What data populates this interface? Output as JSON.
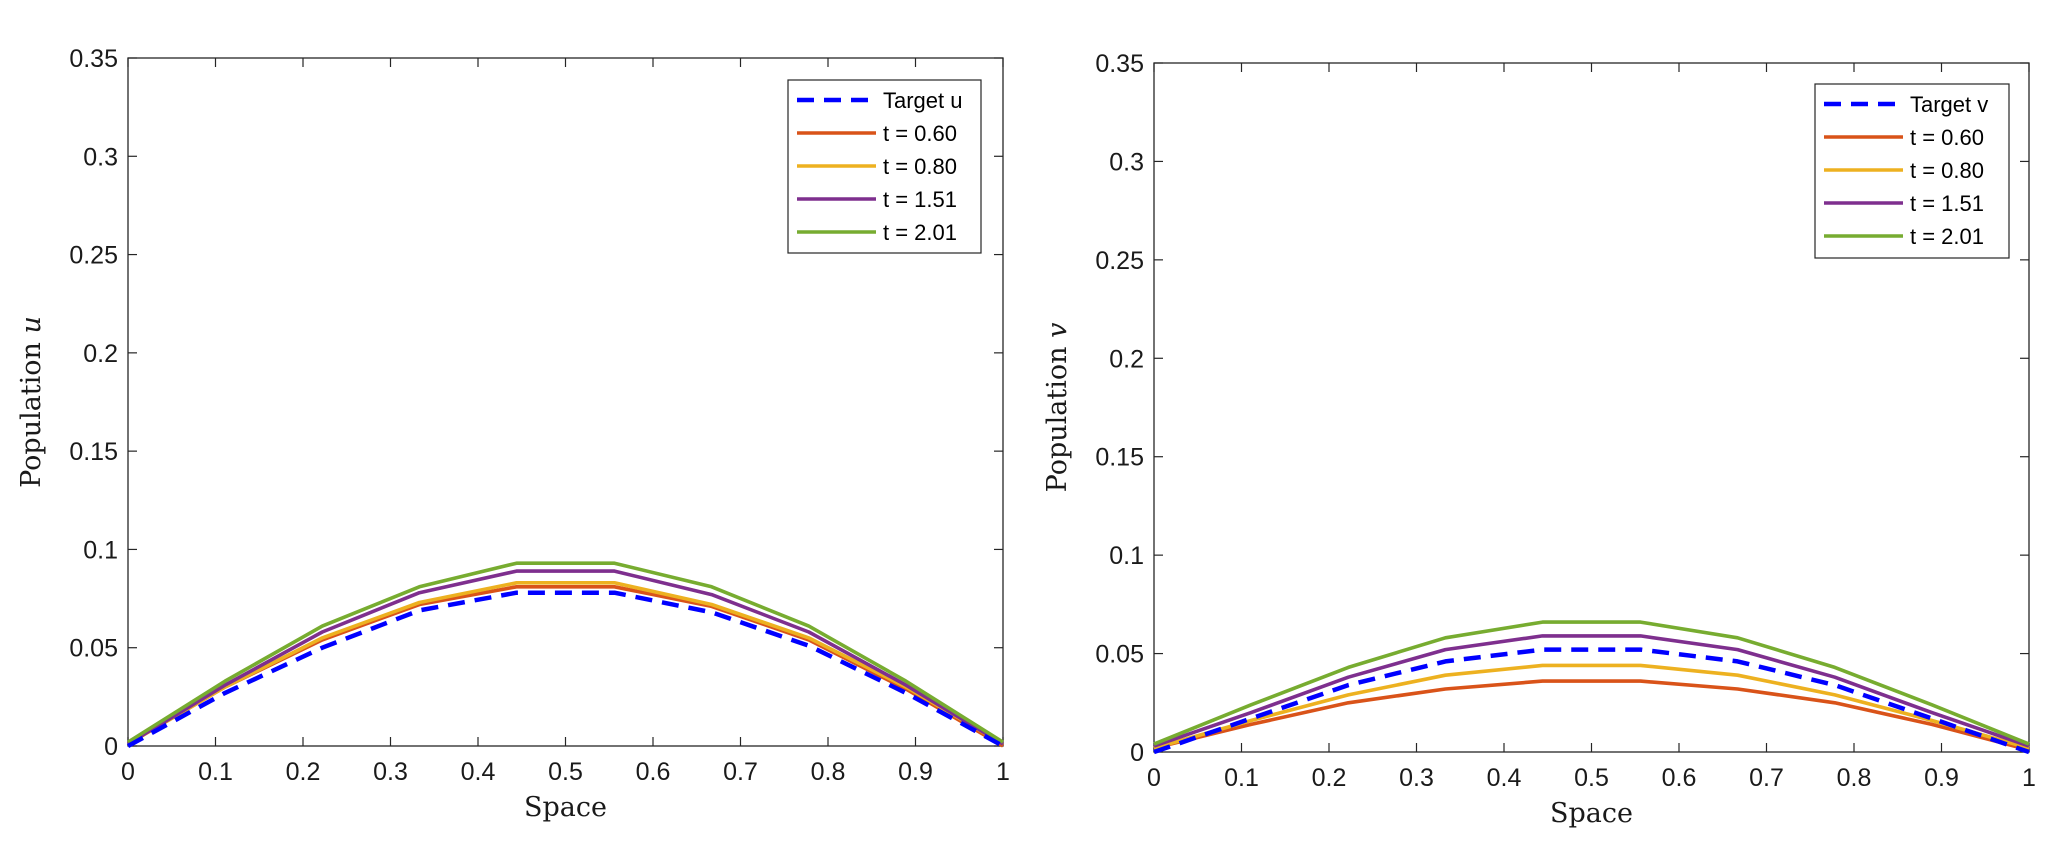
{
  "chart_data": [
    {
      "type": "line",
      "xlabel": "Space",
      "ylabel_text": "Population ",
      "ylabel_var": "u",
      "xlim": [
        0,
        1
      ],
      "ylim": [
        0,
        0.35
      ],
      "xticks": [
        "0",
        "0.1",
        "0.2",
        "0.3",
        "0.4",
        "0.5",
        "0.6",
        "0.7",
        "0.8",
        "0.9",
        "1"
      ],
      "yticks": [
        "0",
        "0.05",
        "0.1",
        "0.15",
        "0.2",
        "0.25",
        "0.3",
        "0.35"
      ],
      "legend_position": "top-right",
      "x": [
        0,
        0.111,
        0.222,
        0.333,
        0.444,
        0.556,
        0.667,
        0.778,
        0.889,
        1
      ],
      "series": [
        {
          "name": "Target u",
          "color": "#0000ff",
          "dash": true,
          "values": [
            0,
            0.027,
            0.05,
            0.069,
            0.078,
            0.078,
            0.068,
            0.051,
            0.027,
            0
          ]
        },
        {
          "name": "t = 0.60",
          "color": "#d95319",
          "dash": false,
          "values": [
            0.001,
            0.03,
            0.054,
            0.072,
            0.081,
            0.081,
            0.071,
            0.054,
            0.029,
            0
          ]
        },
        {
          "name": "t = 0.80",
          "color": "#edb120",
          "dash": false,
          "values": [
            0.001,
            0.03,
            0.055,
            0.073,
            0.083,
            0.083,
            0.072,
            0.055,
            0.03,
            0.001
          ]
        },
        {
          "name": "t = 1.51",
          "color": "#7e2f8e",
          "dash": false,
          "values": [
            0.001,
            0.031,
            0.058,
            0.078,
            0.089,
            0.089,
            0.077,
            0.058,
            0.031,
            0.001
          ]
        },
        {
          "name": "t = 2.01",
          "color": "#77ac30",
          "dash": false,
          "values": [
            0.002,
            0.033,
            0.061,
            0.081,
            0.093,
            0.093,
            0.081,
            0.061,
            0.033,
            0.002
          ]
        }
      ]
    },
    {
      "type": "line",
      "xlabel": "Space",
      "ylabel_text": "Population ",
      "ylabel_var": "v",
      "xlim": [
        0,
        1
      ],
      "ylim": [
        0,
        0.35
      ],
      "xticks": [
        "0",
        "0.1",
        "0.2",
        "0.3",
        "0.4",
        "0.5",
        "0.6",
        "0.7",
        "0.8",
        "0.9",
        "1"
      ],
      "yticks": [
        "0",
        "0.05",
        "0.1",
        "0.15",
        "0.2",
        "0.25",
        "0.3",
        "0.35"
      ],
      "legend_position": "top-right",
      "x": [
        0,
        0.111,
        0.222,
        0.333,
        0.444,
        0.556,
        0.667,
        0.778,
        0.889,
        1
      ],
      "series": [
        {
          "name": "Target v",
          "color": "#0000ff",
          "dash": true,
          "values": [
            0,
            0.017,
            0.034,
            0.046,
            0.052,
            0.052,
            0.046,
            0.034,
            0.017,
            0
          ]
        },
        {
          "name": "t = 0.60",
          "color": "#d95319",
          "dash": false,
          "values": [
            0.002,
            0.014,
            0.025,
            0.032,
            0.036,
            0.036,
            0.032,
            0.025,
            0.014,
            0.001
          ]
        },
        {
          "name": "t = 0.80",
          "color": "#edb120",
          "dash": false,
          "values": [
            0.002,
            0.016,
            0.029,
            0.039,
            0.044,
            0.044,
            0.039,
            0.029,
            0.016,
            0.002
          ]
        },
        {
          "name": "t = 1.51",
          "color": "#7e2f8e",
          "dash": false,
          "values": [
            0.003,
            0.02,
            0.038,
            0.052,
            0.059,
            0.059,
            0.052,
            0.038,
            0.02,
            0.003
          ]
        },
        {
          "name": "t = 2.01",
          "color": "#77ac30",
          "dash": false,
          "values": [
            0.004,
            0.024,
            0.043,
            0.058,
            0.066,
            0.066,
            0.058,
            0.043,
            0.024,
            0.004
          ]
        }
      ]
    }
  ]
}
